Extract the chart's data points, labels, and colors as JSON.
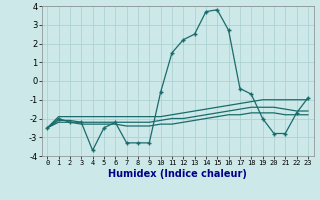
{
  "xlabel": "Humidex (Indice chaleur)",
  "x": [
    0,
    1,
    2,
    3,
    4,
    5,
    6,
    7,
    8,
    9,
    10,
    11,
    12,
    13,
    14,
    15,
    16,
    17,
    18,
    19,
    20,
    21,
    22,
    23
  ],
  "line1": [
    -2.5,
    -2.0,
    -2.2,
    -2.2,
    -3.7,
    -2.5,
    -2.2,
    -3.3,
    -3.3,
    -3.3,
    -0.6,
    1.5,
    2.2,
    2.5,
    3.7,
    3.8,
    2.7,
    -0.4,
    -0.7,
    -2.0,
    -2.8,
    -2.8,
    -1.7,
    -0.9
  ],
  "line2": [
    -2.5,
    -1.9,
    -1.9,
    -1.9,
    -1.9,
    -1.9,
    -1.9,
    -1.9,
    -1.9,
    -1.9,
    -1.9,
    -1.8,
    -1.7,
    -1.6,
    -1.5,
    -1.4,
    -1.3,
    -1.2,
    -1.1,
    -1.0,
    -1.0,
    -1.0,
    -1.0,
    -1.0
  ],
  "line3": [
    -2.5,
    -2.1,
    -2.1,
    -2.2,
    -2.2,
    -2.2,
    -2.2,
    -2.2,
    -2.2,
    -2.2,
    -2.1,
    -2.0,
    -2.0,
    -1.9,
    -1.8,
    -1.7,
    -1.6,
    -1.5,
    -1.4,
    -1.4,
    -1.4,
    -1.5,
    -1.6,
    -1.6
  ],
  "line4": [
    -2.5,
    -2.2,
    -2.2,
    -2.3,
    -2.3,
    -2.3,
    -2.3,
    -2.4,
    -2.4,
    -2.4,
    -2.3,
    -2.3,
    -2.2,
    -2.1,
    -2.0,
    -1.9,
    -1.8,
    -1.8,
    -1.7,
    -1.7,
    -1.7,
    -1.8,
    -1.8,
    -1.8
  ],
  "bg_color": "#cce8e8",
  "line_color": "#1a6b6b",
  "grid_color": "#aacece",
  "ylim": [
    -4,
    4
  ],
  "xlim": [
    0,
    23
  ]
}
